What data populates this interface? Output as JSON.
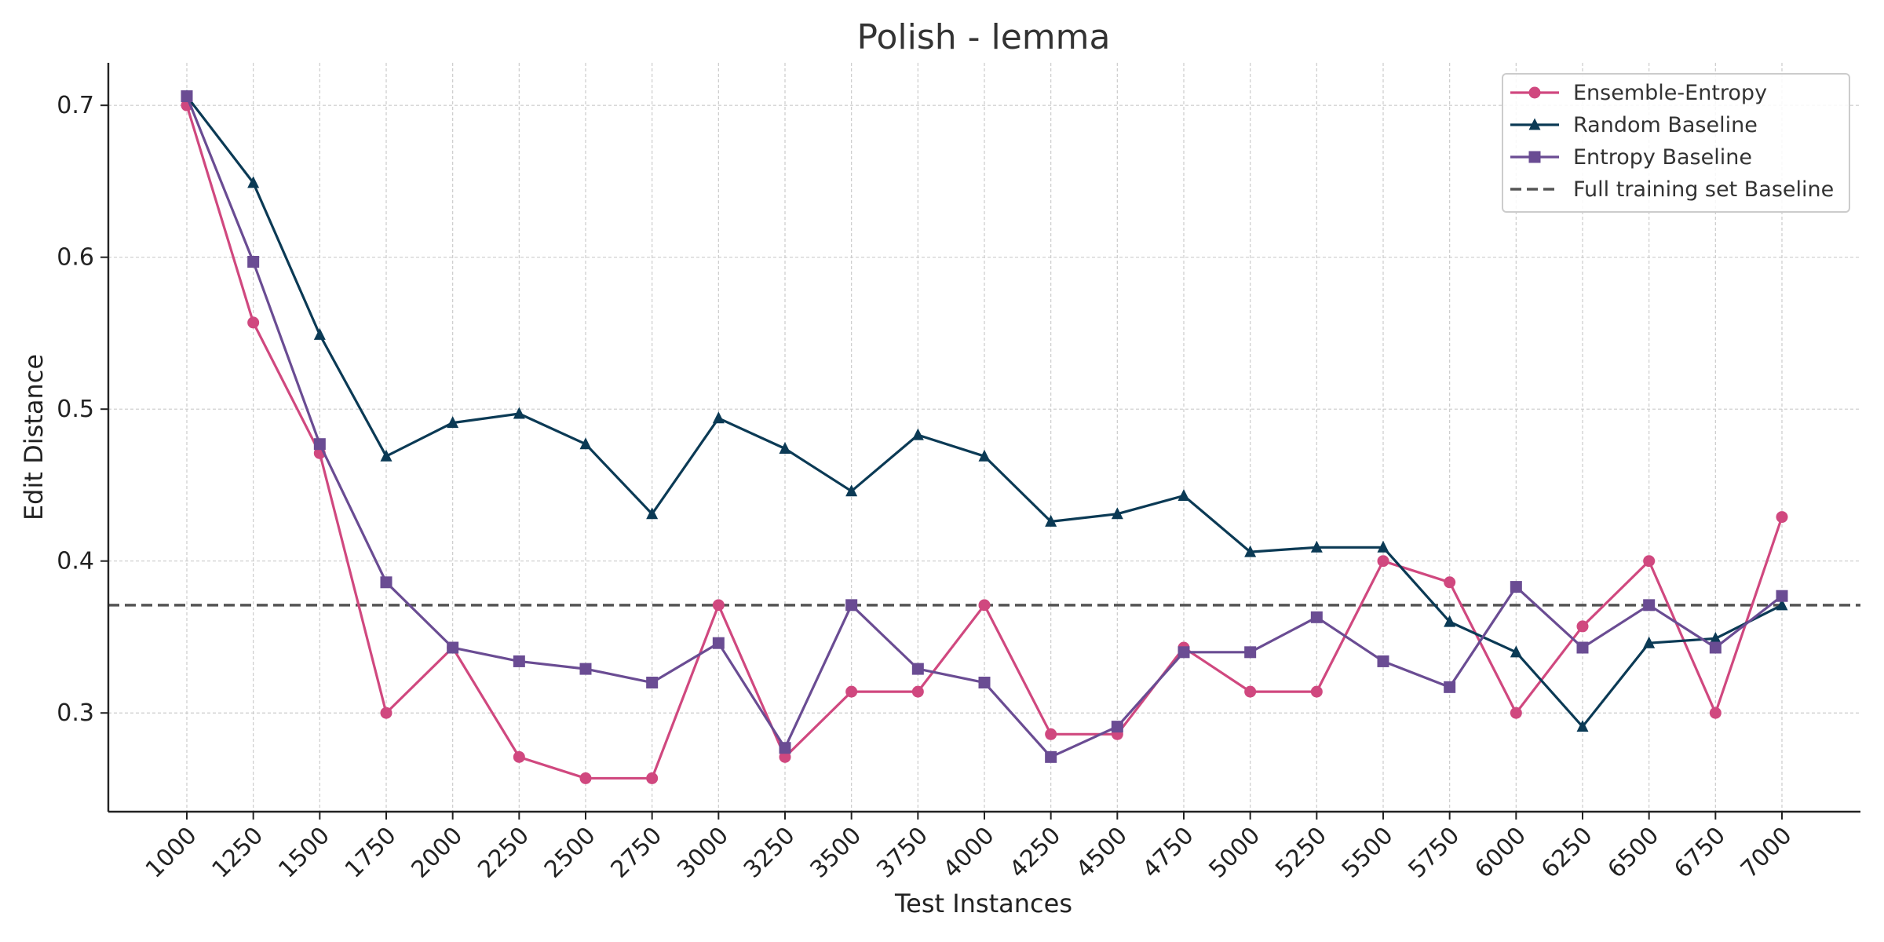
{
  "chart_data": {
    "type": "line",
    "title": "Polish - lemma",
    "xlabel": "Test Instances",
    "ylabel": "Edit Distance",
    "x": [
      1000,
      1250,
      1500,
      1750,
      2000,
      2250,
      2500,
      2750,
      3000,
      3250,
      3500,
      3750,
      4000,
      4250,
      4500,
      4750,
      5000,
      5250,
      5500,
      5750,
      6000,
      6250,
      6500,
      6750,
      7000
    ],
    "x_tick_labels": [
      "1000",
      "1250",
      "1500",
      "1750",
      "2000",
      "2250",
      "2500",
      "2750",
      "3000",
      "3250",
      "3500",
      "3750",
      "4000",
      "4250",
      "4500",
      "4750",
      "5000",
      "5250",
      "5500",
      "5750",
      "6000",
      "6250",
      "6500",
      "6750",
      "7000"
    ],
    "y_ticks": [
      0.3,
      0.4,
      0.5,
      0.6,
      0.7
    ],
    "y_tick_labels": [
      "0.3",
      "0.4",
      "0.5",
      "0.6",
      "0.7"
    ],
    "ylim": [
      0.235,
      0.728
    ],
    "grid": true,
    "legend_position": "top-right",
    "series": [
      {
        "name": "Ensemble-Entropy",
        "color": "#d0487f",
        "marker": "circle",
        "values": [
          0.7,
          0.557,
          0.471,
          0.3,
          0.343,
          0.271,
          0.257,
          0.257,
          0.371,
          0.271,
          0.314,
          0.314,
          0.371,
          0.286,
          0.286,
          0.343,
          0.314,
          0.314,
          0.4,
          0.386,
          0.3,
          0.357,
          0.4,
          0.3,
          0.429
        ]
      },
      {
        "name": "Random Baseline",
        "color": "#0b3a55",
        "marker": "triangle",
        "values": [
          0.706,
          0.649,
          0.549,
          0.469,
          0.491,
          0.497,
          0.477,
          0.431,
          0.494,
          0.474,
          0.446,
          0.483,
          0.469,
          0.426,
          0.431,
          0.443,
          0.406,
          0.409,
          0.409,
          0.36,
          0.34,
          0.291,
          0.346,
          0.349,
          0.371
        ]
      },
      {
        "name": "Entropy Baseline",
        "color": "#6a4c93",
        "marker": "square",
        "values": [
          0.706,
          0.597,
          0.477,
          0.386,
          0.343,
          0.334,
          0.329,
          0.32,
          0.346,
          0.277,
          0.371,
          0.329,
          0.32,
          0.271,
          0.291,
          0.34,
          0.34,
          0.363,
          0.334,
          0.317,
          0.383,
          0.343,
          0.371,
          0.343,
          0.377
        ]
      }
    ],
    "reference_lines": [
      {
        "name": "Full training set Baseline",
        "y": 0.371,
        "color": "#555555",
        "style": "dashed"
      }
    ]
  }
}
